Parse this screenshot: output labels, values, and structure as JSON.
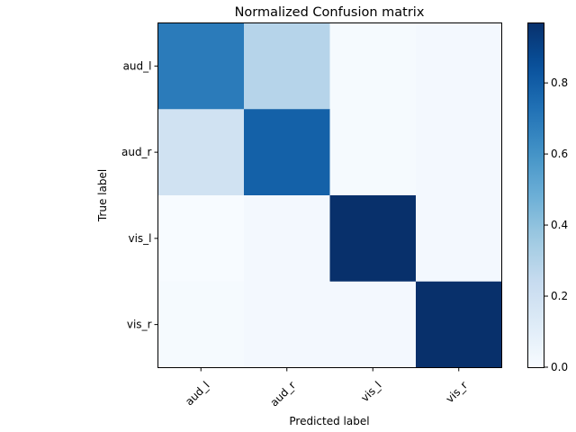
{
  "chart_data": {
    "type": "heatmap",
    "title": "Normalized Confusion matrix",
    "xlabel": "Predicted label",
    "ylabel": "True label",
    "x_categories": [
      "aud_l",
      "aud_r",
      "vis_l",
      "vis_r"
    ],
    "y_categories": [
      "aud_l",
      "aud_r",
      "vis_l",
      "vis_r"
    ],
    "values": [
      [
        0.69,
        0.29,
        0.01,
        0.02
      ],
      [
        0.19,
        0.79,
        0.01,
        0.02
      ],
      [
        0.0,
        0.02,
        0.97,
        0.02
      ],
      [
        0.01,
        0.02,
        0.02,
        0.97
      ]
    ],
    "colormap": "Blues",
    "colorbar": {
      "range": [
        0.0,
        0.97
      ],
      "ticks": [
        0.0,
        0.2,
        0.4,
        0.6,
        0.8
      ],
      "tick_labels": [
        "0.0",
        "0.2",
        "0.4",
        "0.6",
        "0.8"
      ]
    }
  }
}
